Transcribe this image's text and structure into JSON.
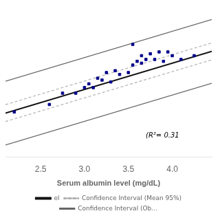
{
  "chart_data": {
    "type": "scatter",
    "xlabel": "Serum albumin level (mg/dL)",
    "annotation": "(R²= 0.31",
    "xlim": [
      2.1,
      4.45
    ],
    "ylim": [
      28,
      108
    ],
    "xticks": [
      2.5,
      {
        "value": 3,
        "label": "3.0"
      },
      3.5,
      {
        "value": 4,
        "label": "4.0"
      }
    ],
    "tick_labels": "x",
    "grid": false,
    "legend": "bottom",
    "series": [
      {
        "name": "el",
        "type": "line",
        "color": "#111111",
        "line_style": "solid",
        "x": [
          2.1,
          4.45
        ],
        "values": [
          51.4,
          84.3
        ]
      },
      {
        "name": "Confidence Interval (Mean 95%)",
        "type": "line",
        "color": "#b0b0b0",
        "line_style": "dashed",
        "x": [
          2.1,
          4.45
        ],
        "upper": [
          55.9,
          88.8
        ],
        "lower": [
          46.9,
          79.8
        ]
      },
      {
        "name": "Confidence Interval (Ob…",
        "type": "line",
        "color": "#666666",
        "line_style": "solid",
        "x": [
          2.1,
          4.45
        ],
        "upper": [
          68.4,
          101.3
        ],
        "lower": [
          34.4,
          67.3
        ]
      },
      {
        "type": "scatter",
        "color": "#00008B",
        "marker": "square",
        "x": [
          2.2,
          2.6,
          2.75,
          2.9,
          3.0,
          3.05,
          3.1,
          3.15,
          3.2,
          3.25,
          3.3,
          3.35,
          3.4,
          3.5,
          3.55,
          3.6,
          3.65,
          3.65,
          3.7,
          3.75,
          3.8,
          3.85,
          3.9,
          3.95,
          4.0,
          4.1,
          4.25,
          3.55
        ],
        "values": [
          52,
          56,
          62,
          62,
          65,
          67,
          65,
          70,
          69,
          73,
          68,
          74,
          72,
          73,
          77,
          79,
          78,
          82,
          80,
          83,
          80,
          84,
          79,
          84,
          82,
          80,
          82,
          88
        ]
      }
    ]
  }
}
